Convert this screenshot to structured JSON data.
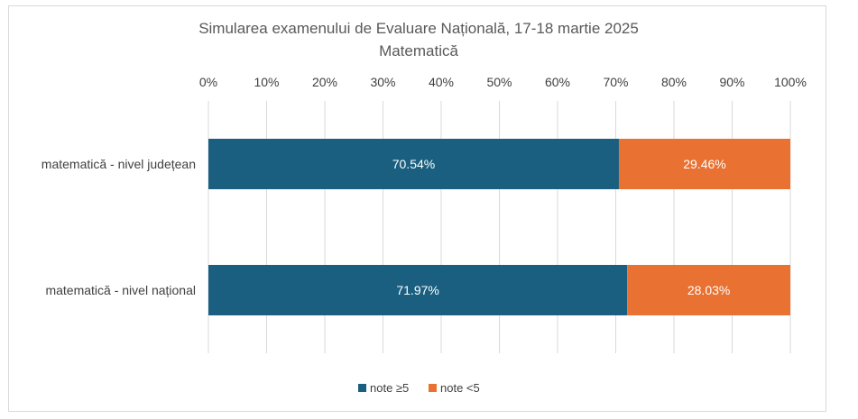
{
  "chart_data": {
    "type": "bar",
    "orientation": "horizontal",
    "stacked": true,
    "title": "Simularea examenului de Evaluare Națională, 17-18 martie 2025",
    "subtitle": "Matematică",
    "categories": [
      "matematică - nivel județean",
      "matematică - nivel național"
    ],
    "series": [
      {
        "name": "note ≥5",
        "values": [
          70.54,
          71.97
        ],
        "labels": [
          "70.54%",
          "71.97%"
        ],
        "color": "#1a5f80"
      },
      {
        "name": "note <5",
        "values": [
          29.46,
          28.03
        ],
        "labels": [
          "29.46%",
          "28.03%"
        ],
        "color": "#e97132"
      }
    ],
    "xlim": [
      0,
      100
    ],
    "xticks": [
      "0%",
      "10%",
      "20%",
      "30%",
      "40%",
      "50%",
      "60%",
      "70%",
      "80%",
      "90%",
      "100%"
    ],
    "x_axis_position": "top",
    "grid": true,
    "legend": "bottom"
  }
}
